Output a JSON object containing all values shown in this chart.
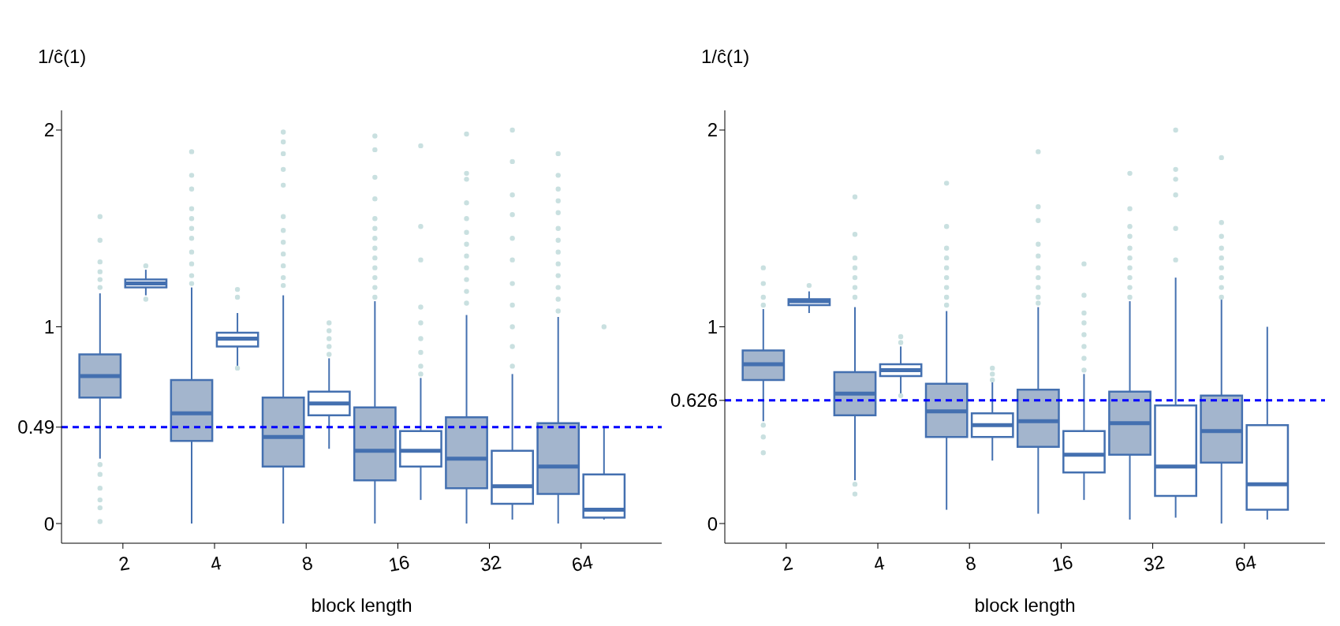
{
  "chart_data": [
    {
      "type": "box",
      "xlabel": "block length",
      "ylabel": "1/ĉ(1)",
      "categories": [
        "2",
        "4",
        "8",
        "16",
        "32",
        "64"
      ],
      "ylim": [
        -0.1,
        2.1
      ],
      "yticks": [
        0,
        0.49,
        1,
        2
      ],
      "marker": "circle",
      "ref_lines": [
        {
          "axis": "y",
          "value": 0.49,
          "color": "#0000ff",
          "line_style": "dashed"
        }
      ],
      "series": [
        {
          "color": "#a3b5cd",
          "boxes": [
            {
              "low": 0.33,
              "q1": 0.64,
              "median": 0.75,
              "q3": 0.86,
              "high": 1.17,
              "outliers": [
                1.56,
                1.44,
                1.33,
                1.28,
                1.24,
                1.2,
                0.3,
                0.25,
                0.18,
                0.12,
                0.08,
                0.01
              ]
            },
            {
              "low": 0,
              "q1": 0.42,
              "median": 0.56,
              "q3": 0.73,
              "high": 1.2,
              "outliers": [
                1.89,
                1.77,
                1.7,
                1.6,
                1.55,
                1.5,
                1.45,
                1.38,
                1.32,
                1.26,
                1.22
              ]
            },
            {
              "low": 0,
              "q1": 0.29,
              "median": 0.44,
              "q3": 0.64,
              "high": 1.16,
              "outliers": [
                1.99,
                1.94,
                1.88,
                1.8,
                1.72,
                1.56,
                1.49,
                1.43,
                1.37,
                1.31,
                1.25,
                1.21
              ]
            },
            {
              "low": 0,
              "q1": 0.22,
              "median": 0.37,
              "q3": 0.59,
              "high": 1.13,
              "outliers": [
                1.97,
                1.9,
                1.76,
                1.65,
                1.55,
                1.5,
                1.45,
                1.4,
                1.35,
                1.3,
                1.25,
                1.2,
                1.15
              ]
            },
            {
              "low": 0,
              "q1": 0.18,
              "median": 0.33,
              "q3": 0.54,
              "high": 1.06,
              "outliers": [
                1.98,
                1.78,
                1.75,
                1.63,
                1.55,
                1.48,
                1.42,
                1.36,
                1.3,
                1.24,
                1.18,
                1.12
              ]
            },
            {
              "low": 0,
              "q1": 0.15,
              "median": 0.29,
              "q3": 0.51,
              "high": 1.05,
              "outliers": [
                1.88,
                1.77,
                1.7,
                1.64,
                1.58,
                1.5,
                1.44,
                1.38,
                1.32,
                1.26,
                1.2,
                1.14,
                1.08
              ]
            }
          ]
        },
        {
          "color": "#ffffff",
          "boxes": [
            {
              "low": 1.16,
              "q1": 1.2,
              "median": 1.22,
              "q3": 1.24,
              "high": 1.29,
              "outliers": [
                1.31,
                1.14
              ]
            },
            {
              "low": 0.8,
              "q1": 0.9,
              "median": 0.94,
              "q3": 0.97,
              "high": 1.07,
              "outliers": [
                1.19,
                1.15,
                0.79
              ]
            },
            {
              "low": 0.38,
              "q1": 0.55,
              "median": 0.61,
              "q3": 0.67,
              "high": 0.84,
              "outliers": [
                1.02,
                0.98,
                0.94,
                0.9,
                0.86
              ]
            },
            {
              "low": 0.12,
              "q1": 0.29,
              "median": 0.37,
              "q3": 0.47,
              "high": 0.74,
              "outliers": [
                1.92,
                1.51,
                1.34,
                1.1,
                1.02,
                0.94,
                0.87,
                0.8,
                0.76
              ]
            },
            {
              "low": 0.02,
              "q1": 0.1,
              "median": 0.19,
              "q3": 0.37,
              "high": 0.76,
              "outliers": [
                2.0,
                1.84,
                1.67,
                1.57,
                1.45,
                1.34,
                1.22,
                1.11,
                1.0,
                0.9,
                0.8
              ]
            },
            {
              "low": 0.02,
              "q1": 0.03,
              "median": 0.07,
              "q3": 0.25,
              "high": 0.49,
              "outliers": [
                1.0
              ]
            }
          ]
        }
      ]
    },
    {
      "type": "box",
      "xlabel": "block length",
      "ylabel": "1/ĉ(1)",
      "categories": [
        "2",
        "4",
        "8",
        "16",
        "32",
        "64"
      ],
      "ylim": [
        -0.1,
        2.1
      ],
      "yticks": [
        0,
        0.626,
        1,
        2
      ],
      "marker": "circle",
      "ref_lines": [
        {
          "axis": "y",
          "value": 0.626,
          "color": "#0000ff",
          "line_style": "dashed"
        }
      ],
      "series": [
        {
          "color": "#a3b5cd",
          "boxes": [
            {
              "low": 0.52,
              "q1": 0.73,
              "median": 0.81,
              "q3": 0.88,
              "high": 1.09,
              "outliers": [
                1.3,
                1.22,
                1.15,
                1.11,
                0.5,
                0.44,
                0.36
              ]
            },
            {
              "low": 0.22,
              "q1": 0.55,
              "median": 0.66,
              "q3": 0.77,
              "high": 1.1,
              "outliers": [
                1.66,
                1.47,
                1.35,
                1.3,
                1.25,
                1.2,
                1.15,
                0.2,
                0.15
              ]
            },
            {
              "low": 0.07,
              "q1": 0.44,
              "median": 0.57,
              "q3": 0.71,
              "high": 1.08,
              "outliers": [
                1.73,
                1.51,
                1.4,
                1.35,
                1.3,
                1.25,
                1.2,
                1.15,
                1.11
              ]
            },
            {
              "low": 0.05,
              "q1": 0.39,
              "median": 0.52,
              "q3": 0.68,
              "high": 1.1,
              "outliers": [
                1.89,
                1.61,
                1.54,
                1.42,
                1.36,
                1.3,
                1.25,
                1.2,
                1.15,
                1.12
              ]
            },
            {
              "low": 0.02,
              "q1": 0.35,
              "median": 0.51,
              "q3": 0.67,
              "high": 1.13,
              "outliers": [
                1.78,
                1.6,
                1.51,
                1.46,
                1.4,
                1.35,
                1.3,
                1.25,
                1.2,
                1.15
              ]
            },
            {
              "low": 0,
              "q1": 0.31,
              "median": 0.47,
              "q3": 0.65,
              "high": 1.14,
              "outliers": [
                1.86,
                1.53,
                1.46,
                1.4,
                1.35,
                1.3,
                1.25,
                1.2,
                1.15
              ]
            }
          ]
        },
        {
          "color": "#ffffff",
          "boxes": [
            {
              "low": 1.07,
              "q1": 1.11,
              "median": 1.13,
              "q3": 1.14,
              "high": 1.18,
              "outliers": [
                1.21
              ]
            },
            {
              "low": 0.66,
              "q1": 0.75,
              "median": 0.78,
              "q3": 0.81,
              "high": 0.9,
              "outliers": [
                0.95,
                0.92,
                0.65
              ]
            },
            {
              "low": 0.32,
              "q1": 0.44,
              "median": 0.5,
              "q3": 0.56,
              "high": 0.72,
              "outliers": [
                0.79,
                0.76,
                0.73
              ]
            },
            {
              "low": 0.12,
              "q1": 0.26,
              "median": 0.35,
              "q3": 0.47,
              "high": 0.76,
              "outliers": [
                1.32,
                1.16,
                1.07,
                1.02,
                0.96,
                0.9,
                0.84,
                0.78
              ]
            },
            {
              "low": 0.03,
              "q1": 0.14,
              "median": 0.29,
              "q3": 0.6,
              "high": 1.25,
              "outliers": [
                2.0,
                1.8,
                1.75,
                1.67,
                1.5,
                1.34
              ]
            },
            {
              "low": 0.02,
              "q1": 0.07,
              "median": 0.2,
              "q3": 0.5,
              "high": 1.0
            }
          ]
        }
      ]
    }
  ]
}
